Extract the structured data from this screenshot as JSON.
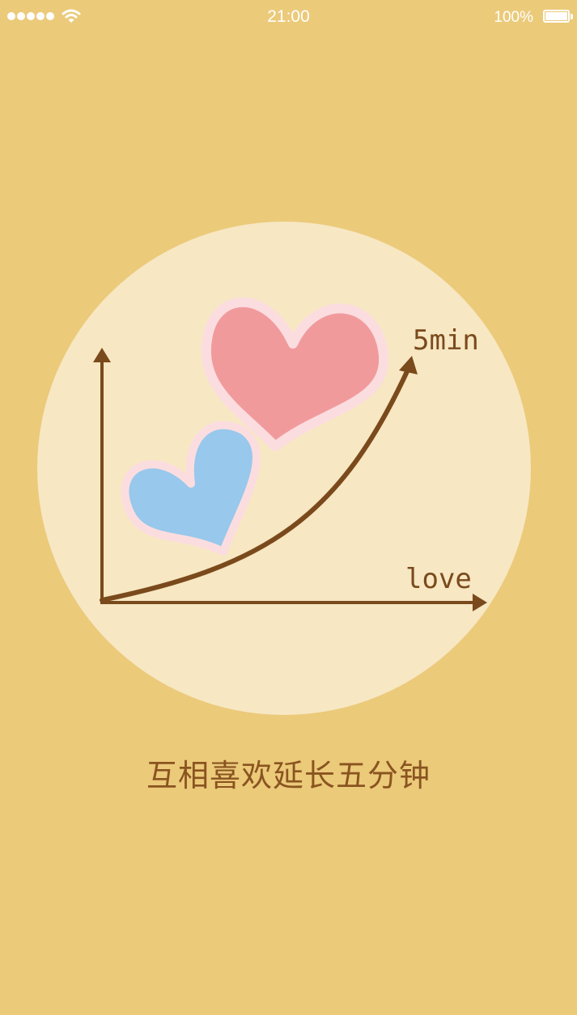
{
  "status_bar": {
    "time": "21:00",
    "battery": "100%",
    "signal_bars": 5
  },
  "illustration": {
    "y_label": "5min",
    "x_label": "love"
  },
  "caption": "互相喜欢延长五分钟",
  "colors": {
    "background": "#EBCA7A",
    "circle": "#F7E7C3",
    "axis": "#7A4A1C",
    "heart_pink": "#F19A9C",
    "heart_blue": "#98C8EC",
    "heart_outline": "#FBDDE0",
    "caption": "#8A5420"
  }
}
